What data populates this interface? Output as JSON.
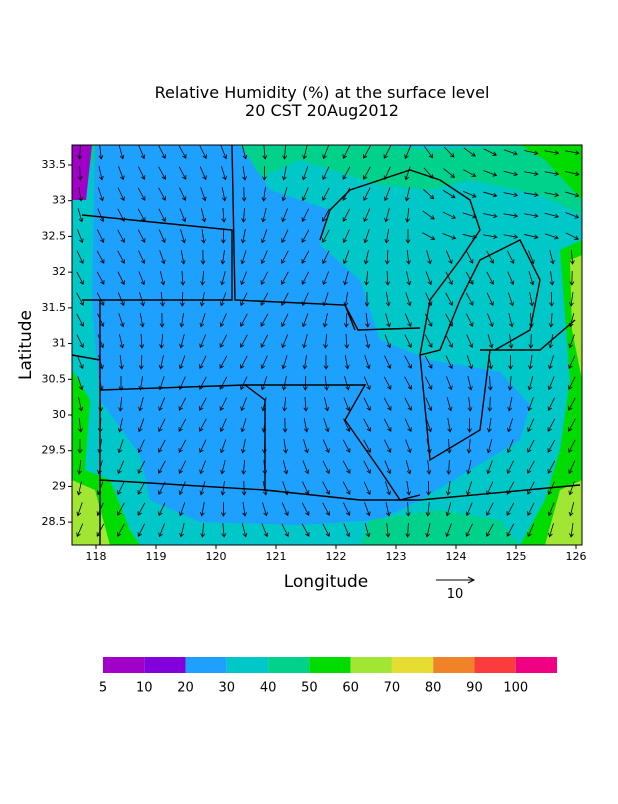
{
  "chart_data": {
    "type": "contour-map",
    "title": "Relative Humidity (%) at the surface level",
    "subtitle": "20 CST 20Aug2012",
    "x_label": "Longitude",
    "y_label": "Latitude",
    "xlim": [
      117.6,
      126.1
    ],
    "ylim": [
      28.18,
      33.78
    ],
    "xticks": [
      118,
      119,
      120,
      121,
      122,
      123,
      124,
      125,
      126
    ],
    "yticks": [
      28.5,
      29,
      29.5,
      30,
      30.5,
      31,
      31.5,
      32,
      32.5,
      33,
      33.5
    ],
    "vector_scale": 10,
    "colorbar": {
      "levels": [
        5,
        10,
        20,
        30,
        40,
        50,
        60,
        70,
        80,
        90,
        100
      ],
      "colors": [
        "#a000c8",
        "#8200dc",
        "#1ea0ff",
        "#00c8c8",
        "#00d28c",
        "#00dc00",
        "#a0e632",
        "#e6dc32",
        "#f08228",
        "#fa3c3c",
        "#f00082"
      ]
    }
  }
}
